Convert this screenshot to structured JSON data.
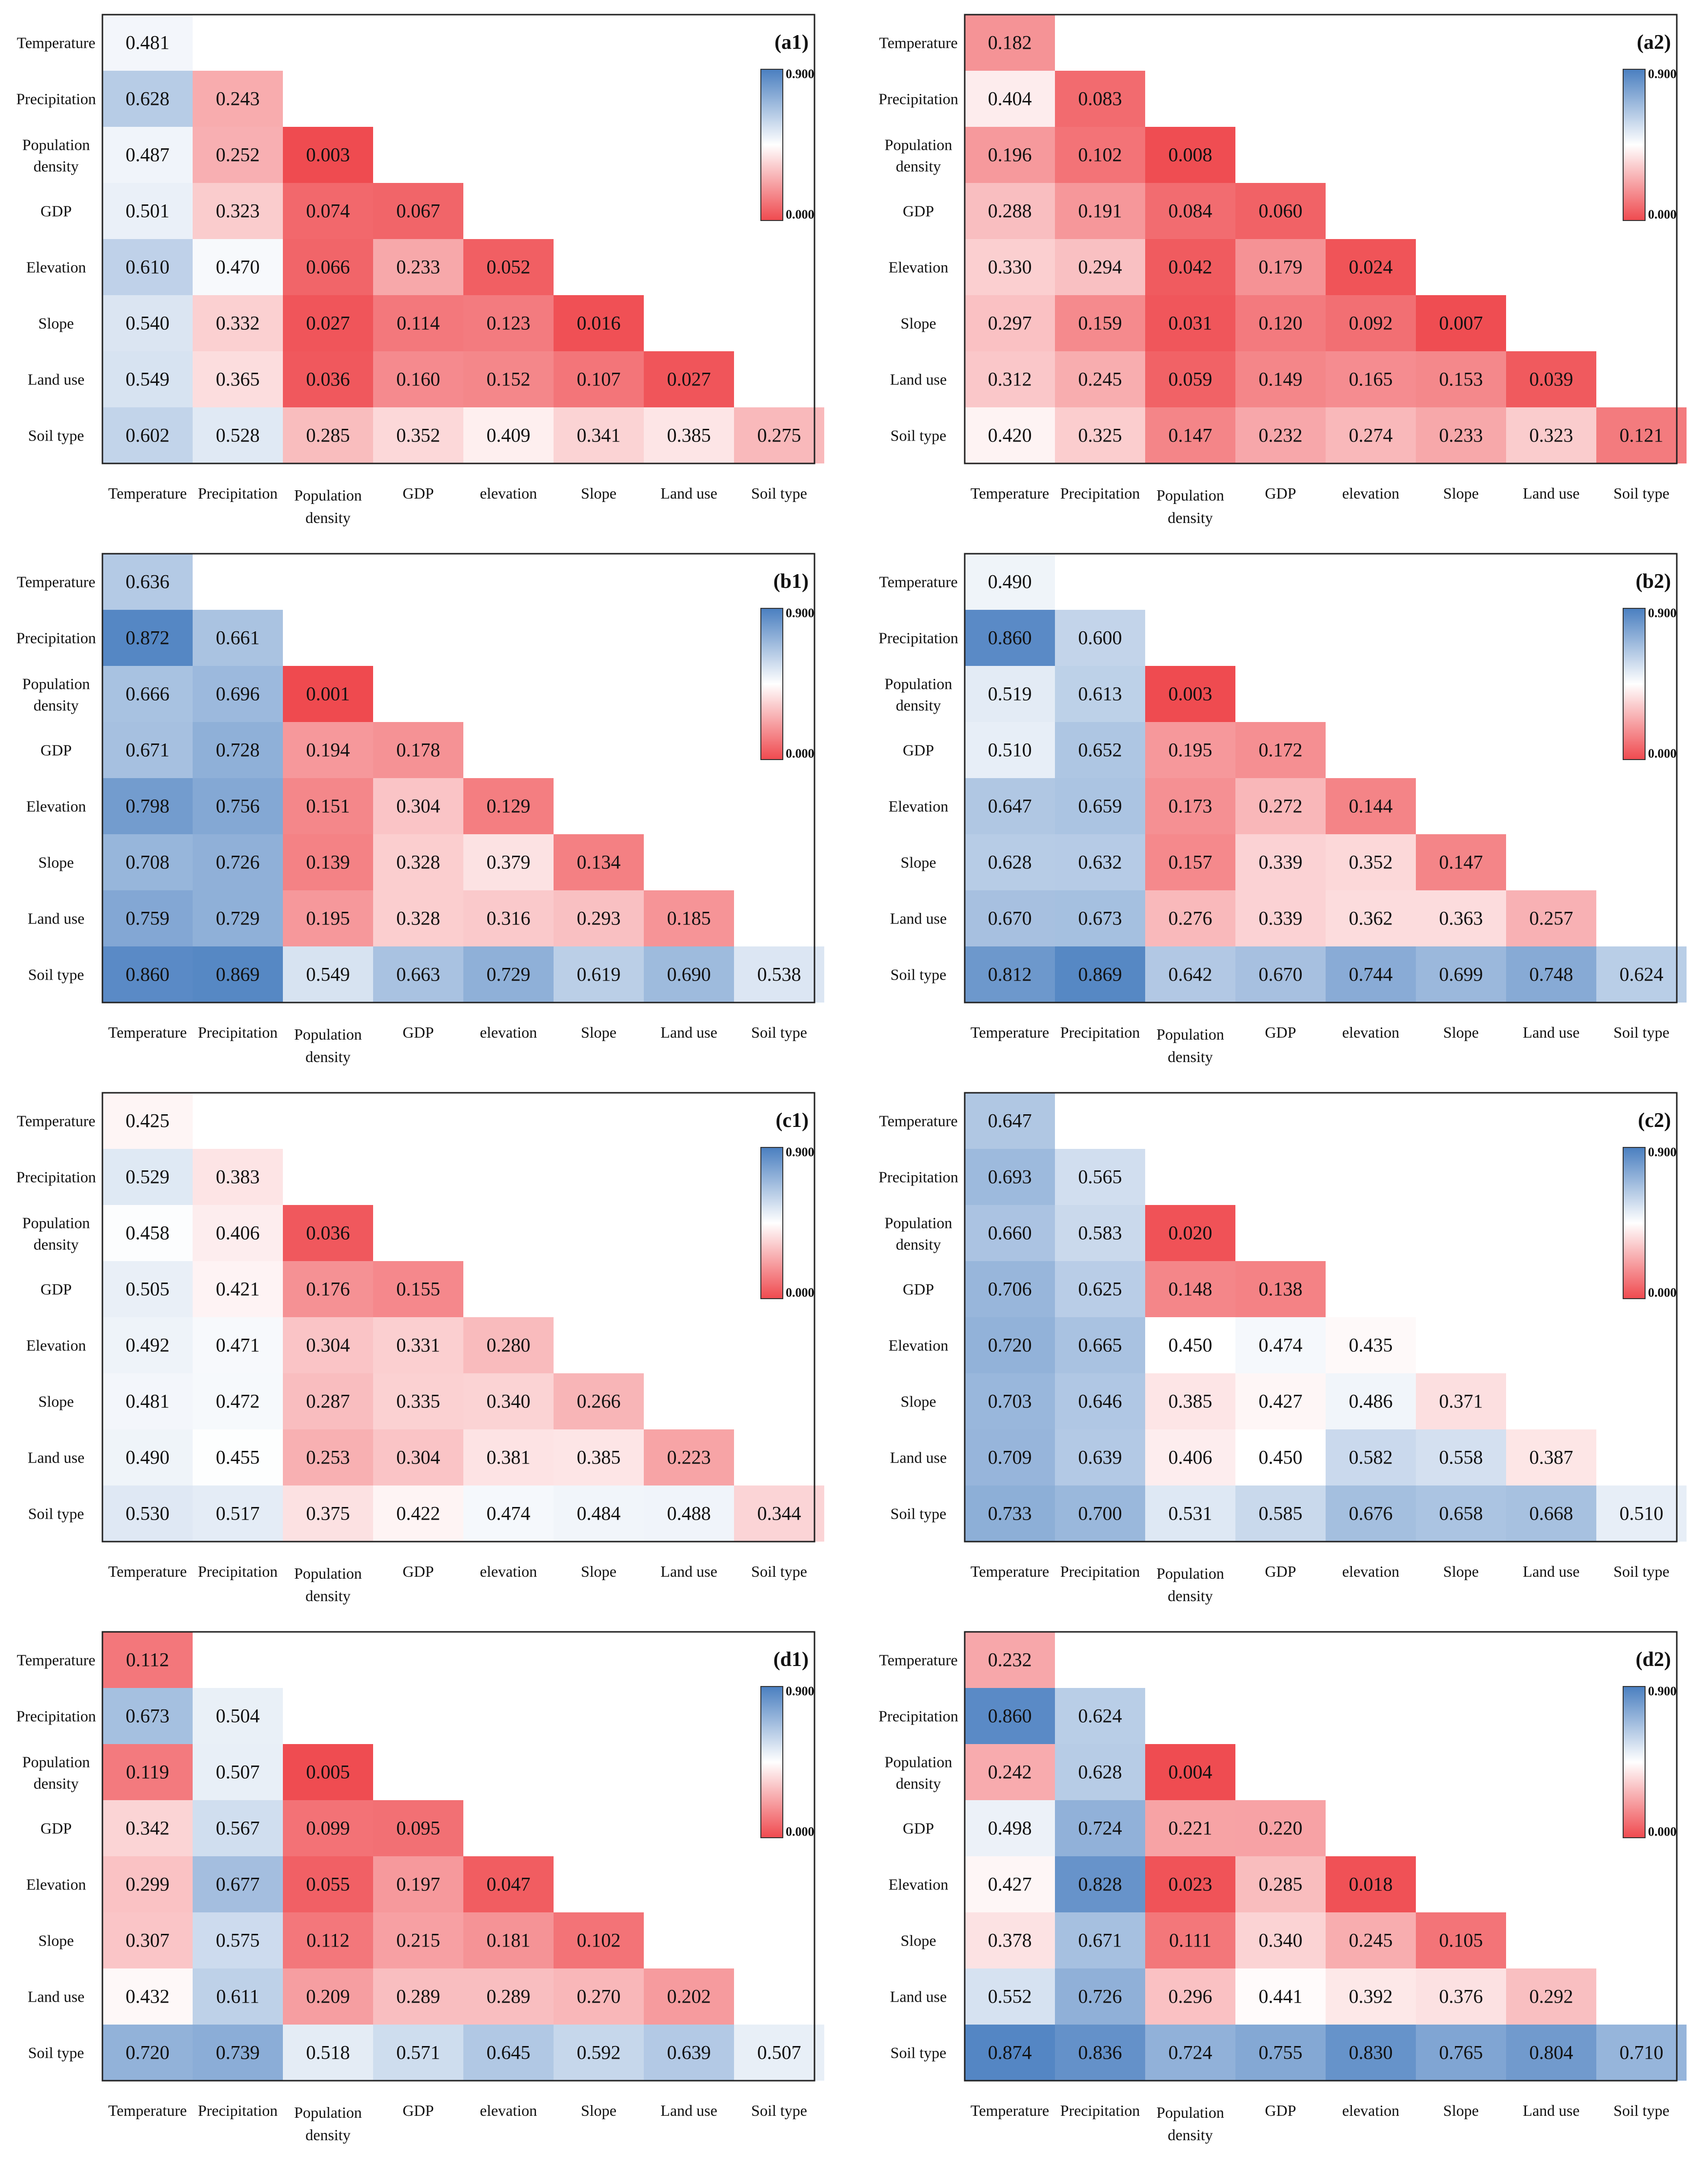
{
  "figure": {
    "row_labels": [
      "Temperature",
      "Precipitation",
      "Population density",
      "GDP",
      "Elevation",
      "Slope",
      "Land use",
      "Soil type"
    ],
    "col_labels": [
      "Temperature",
      "Precipitation",
      "Population density",
      "GDP",
      "elevation",
      "Slope",
      "Land use",
      "Soil type"
    ],
    "colorbar": {
      "max_label": "0.900",
      "min_label": "0.000",
      "vmin": 0,
      "vmax": 0.9,
      "colors": {
        "low": "#ef4a4f",
        "mid": "#ffffff",
        "high": "#4a7fc0"
      }
    }
  },
  "chart_data": [
    {
      "type": "heatmap",
      "title": "(a1)",
      "values": [
        [
          0.481
        ],
        [
          0.628,
          0.243
        ],
        [
          0.487,
          0.252,
          0.003
        ],
        [
          0.501,
          0.323,
          0.074,
          0.067
        ],
        [
          0.61,
          0.47,
          0.066,
          0.233,
          0.052
        ],
        [
          0.54,
          0.332,
          0.027,
          0.114,
          0.123,
          0.016
        ],
        [
          0.549,
          0.365,
          0.036,
          0.16,
          0.152,
          0.107,
          0.027
        ],
        [
          0.602,
          0.528,
          0.285,
          0.352,
          0.409,
          0.341,
          0.385,
          0.275
        ]
      ],
      "labels": [
        [
          "0.481"
        ],
        [
          "0.628",
          "0.243"
        ],
        [
          "0.487",
          "0.252",
          "0.003"
        ],
        [
          "0.501",
          "0.323",
          "0.074",
          "0.067"
        ],
        [
          "0.610",
          "0.470",
          "0.066",
          "0.233",
          "0.052"
        ],
        [
          "0.540",
          "0.332",
          "0.027",
          "0.114",
          "0.123",
          "0.016"
        ],
        [
          "0.549",
          "0.365",
          "0.036",
          "0.160",
          "0.152",
          "0.107",
          "0.027"
        ],
        [
          "0.602",
          "0.528",
          "0.285",
          "0.352",
          "0.409",
          "0.341",
          "0.385",
          "0.275"
        ]
      ]
    },
    {
      "type": "heatmap",
      "title": "(a2)",
      "values": [
        [
          0.182
        ],
        [
          0.404,
          0.083
        ],
        [
          0.196,
          0.102,
          0.008
        ],
        [
          0.288,
          0.191,
          0.084,
          0.06
        ],
        [
          0.33,
          0.294,
          0.042,
          0.179,
          0.024
        ],
        [
          0.297,
          0.159,
          0.031,
          0.12,
          0.092,
          0.007
        ],
        [
          0.312,
          0.245,
          0.059,
          0.149,
          0.165,
          0.153,
          0.039
        ],
        [
          0.42,
          0.325,
          0.147,
          0.232,
          0.274,
          0.233,
          0.323,
          0.121
        ]
      ],
      "labels": [
        [
          "0.182"
        ],
        [
          "0.404",
          "0.083"
        ],
        [
          "0.196",
          "0.102",
          "0.008"
        ],
        [
          "0.288",
          "0.191",
          "0.084",
          "0.060"
        ],
        [
          "0.330",
          "0.294",
          "0.042",
          "0.179",
          "0.024"
        ],
        [
          "0.297",
          "0.159",
          "0.031",
          "0.120",
          "0.092",
          "0.007"
        ],
        [
          "0.312",
          "0.245",
          "0.059",
          "0.149",
          "0.165",
          "0.153",
          "0.039"
        ],
        [
          "0.420",
          "0.325",
          "0.147",
          "0.232",
          "0.274",
          "0.233",
          "0.323",
          "0.121"
        ]
      ]
    },
    {
      "type": "heatmap",
      "title": "(b1)",
      "values": [
        [
          0.636
        ],
        [
          0.872,
          0.661
        ],
        [
          0.666,
          0.696,
          0.001
        ],
        [
          0.671,
          0.728,
          0.194,
          0.178
        ],
        [
          0.798,
          0.756,
          0.151,
          0.304,
          0.129
        ],
        [
          0.708,
          0.726,
          0.139,
          0.328,
          0.379,
          0.134
        ],
        [
          0.759,
          0.729,
          0.195,
          0.328,
          0.316,
          0.293,
          0.185
        ],
        [
          0.86,
          0.869,
          0.549,
          0.663,
          0.729,
          0.619,
          0.69,
          0.538
        ]
      ],
      "labels": [
        [
          "0.636"
        ],
        [
          "0.872",
          "0.661"
        ],
        [
          "0.666",
          "0.696",
          "0.001"
        ],
        [
          "0.671",
          "0.728",
          "0.194",
          "0.178"
        ],
        [
          "0.798",
          "0.756",
          "0.151",
          "0.304",
          "0.129"
        ],
        [
          "0.708",
          "0.726",
          "0.139",
          "0.328",
          "0.379",
          "0.134"
        ],
        [
          "0.759",
          "0.729",
          "0.195",
          "0.328",
          "0.316",
          "0.293",
          "0.185"
        ],
        [
          "0.860",
          "0.869",
          "0.549",
          "0.663",
          "0.729",
          "0.619",
          "0.690",
          "0.538"
        ]
      ]
    },
    {
      "type": "heatmap",
      "title": "(b2)",
      "values": [
        [
          0.49
        ],
        [
          0.86,
          0.6
        ],
        [
          0.519,
          0.613,
          0.003
        ],
        [
          0.51,
          0.652,
          0.195,
          0.172
        ],
        [
          0.647,
          0.659,
          0.173,
          0.272,
          0.144
        ],
        [
          0.628,
          0.632,
          0.157,
          0.339,
          0.352,
          0.147
        ],
        [
          0.67,
          0.673,
          0.276,
          0.339,
          0.362,
          0.363,
          0.257
        ],
        [
          0.812,
          0.869,
          0.642,
          0.67,
          0.744,
          0.699,
          0.748,
          0.624
        ]
      ],
      "labels": [
        [
          "0.490"
        ],
        [
          "0.860",
          "0.600"
        ],
        [
          "0.519",
          "0.613",
          "0.003"
        ],
        [
          "0.510",
          "0.652",
          "0.195",
          "0.172"
        ],
        [
          "0.647",
          "0.659",
          "0.173",
          "0.272",
          "0.144"
        ],
        [
          "0.628",
          "0.632",
          "0.157",
          "0.339",
          "0.352",
          "0.147"
        ],
        [
          "0.670",
          "0.673",
          "0.276",
          "0.339",
          "0.362",
          "0.363",
          "0.257"
        ],
        [
          "0.812",
          "0.869",
          "0.642",
          "0.670",
          "0.744",
          "0.699",
          "0.748",
          "0.624"
        ]
      ]
    },
    {
      "type": "heatmap",
      "title": "(c1)",
      "values": [
        [
          0.425
        ],
        [
          0.529,
          0.383
        ],
        [
          0.458,
          0.406,
          0.036
        ],
        [
          0.505,
          0.421,
          0.176,
          0.155
        ],
        [
          0.492,
          0.471,
          0.304,
          0.331,
          0.28
        ],
        [
          0.481,
          0.472,
          0.287,
          0.335,
          0.34,
          0.266
        ],
        [
          0.49,
          0.455,
          0.253,
          0.304,
          0.381,
          0.385,
          0.223
        ],
        [
          0.53,
          0.517,
          0.375,
          0.422,
          0.474,
          0.484,
          0.488,
          0.344
        ]
      ],
      "labels": [
        [
          "0.425"
        ],
        [
          "0.529",
          "0.383"
        ],
        [
          "0.458",
          "0.406",
          "0.036"
        ],
        [
          "0.505",
          "0.421",
          "0.176",
          "0.155"
        ],
        [
          "0.492",
          "0.471",
          "0.304",
          "0.331",
          "0.280"
        ],
        [
          "0.481",
          "0.472",
          "0.287",
          "0.335",
          "0.340",
          "0.266"
        ],
        [
          "0.490",
          "0.455",
          "0.253",
          "0.304",
          "0.381",
          "0.385",
          "0.223"
        ],
        [
          "0.530",
          "0.517",
          "0.375",
          "0.422",
          "0.474",
          "0.484",
          "0.488",
          "0.344"
        ]
      ]
    },
    {
      "type": "heatmap",
      "title": "(c2)",
      "values": [
        [
          0.647
        ],
        [
          0.693,
          0.565
        ],
        [
          0.66,
          0.583,
          0.02
        ],
        [
          0.706,
          0.625,
          0.148,
          0.138
        ],
        [
          0.72,
          0.665,
          0.45,
          0.474,
          0.435
        ],
        [
          0.703,
          0.646,
          0.385,
          0.427,
          0.486,
          0.371
        ],
        [
          0.709,
          0.639,
          0.406,
          0.45,
          0.582,
          0.558,
          0.387
        ],
        [
          0.733,
          0.7,
          0.531,
          0.585,
          0.676,
          0.658,
          0.668,
          0.51
        ]
      ],
      "labels": [
        [
          "0.647"
        ],
        [
          "0.693",
          "0.565"
        ],
        [
          "0.660",
          "0.583",
          "0.020"
        ],
        [
          "0.706",
          "0.625",
          "0.148",
          "0.138"
        ],
        [
          "0.720",
          "0.665",
          "0.450",
          "0.474",
          "0.435"
        ],
        [
          "0.703",
          "0.646",
          "0.385",
          "0.427",
          "0.486",
          "0.371"
        ],
        [
          "0.709",
          "0.639",
          "0.406",
          "0.450",
          "0.582",
          "0.558",
          "0.387"
        ],
        [
          "0.733",
          "0.700",
          "0.531",
          "0.585",
          "0.676",
          "0.658",
          "0.668",
          "0.510"
        ]
      ]
    },
    {
      "type": "heatmap",
      "title": "(d1)",
      "values": [
        [
          0.112
        ],
        [
          0.673,
          0.504
        ],
        [
          0.119,
          0.507,
          0.005
        ],
        [
          0.342,
          0.567,
          0.099,
          0.095
        ],
        [
          0.299,
          0.677,
          0.055,
          0.197,
          0.047
        ],
        [
          0.307,
          0.575,
          0.112,
          0.215,
          0.181,
          0.102
        ],
        [
          0.432,
          0.611,
          0.209,
          0.289,
          0.289,
          0.27,
          0.202
        ],
        [
          0.72,
          0.739,
          0.518,
          0.571,
          0.645,
          0.592,
          0.639,
          0.507
        ]
      ],
      "labels": [
        [
          "0.112"
        ],
        [
          "0.673",
          "0.504"
        ],
        [
          "0.119",
          "0.507",
          "0.005"
        ],
        [
          "0.342",
          "0.567",
          "0.099",
          "0.095"
        ],
        [
          "0.299",
          "0.677",
          "0.055",
          "0.197",
          "0.047"
        ],
        [
          "0.307",
          "0.575",
          "0.112",
          "0.215",
          "0.181",
          "0.102"
        ],
        [
          "0.432",
          "0.611",
          "0.209",
          "0.289",
          "0.289",
          "0.270",
          "0.202"
        ],
        [
          "0.720",
          "0.739",
          "0.518",
          "0.571",
          "0.645",
          "0.592",
          "0.639",
          "0.507"
        ]
      ]
    },
    {
      "type": "heatmap",
      "title": "(d2)",
      "values": [
        [
          0.232
        ],
        [
          0.86,
          0.624
        ],
        [
          0.242,
          0.628,
          0.004
        ],
        [
          0.498,
          0.724,
          0.221,
          0.22
        ],
        [
          0.427,
          0.828,
          0.023,
          0.285,
          0.018
        ],
        [
          0.378,
          0.671,
          0.111,
          0.34,
          0.245,
          0.105
        ],
        [
          0.552,
          0.726,
          0.296,
          0.441,
          0.392,
          0.376,
          0.292
        ],
        [
          0.874,
          0.836,
          0.724,
          0.755,
          0.83,
          0.765,
          0.804,
          0.71
        ]
      ],
      "labels": [
        [
          "0.232"
        ],
        [
          "0.860",
          "0.624"
        ],
        [
          "0.242",
          "0.628",
          "0.004"
        ],
        [
          "0.498",
          "0.724",
          "0.221",
          "0.220"
        ],
        [
          "0.427",
          "0.828",
          "0.023",
          "0.285",
          "0.018"
        ],
        [
          "0.378",
          "0.671",
          "0.111",
          "0.340",
          "0.245",
          "0.105"
        ],
        [
          "0.552",
          "0.726",
          "0.296",
          "0.441",
          "0.392",
          "0.376",
          "0.292"
        ],
        [
          "0.874",
          "0.836",
          "0.724",
          "0.755",
          "0.830",
          "0.765",
          "0.804",
          "0.710"
        ]
      ]
    }
  ]
}
